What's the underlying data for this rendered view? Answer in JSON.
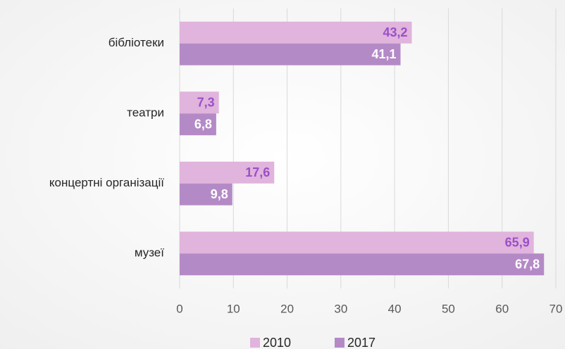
{
  "chart_data": {
    "type": "barh",
    "categories": [
      "бібліотеки",
      "театри",
      "концертні організації",
      "музеї"
    ],
    "series": [
      {
        "name": "2010",
        "color": "#e0b4dc",
        "label_color": "#9b4fc8",
        "values": [
          43.2,
          7.3,
          17.6,
          65.9
        ],
        "value_labels": [
          "43,2",
          "7,3",
          "17,6",
          "65,9"
        ]
      },
      {
        "name": "2017",
        "color": "#b48ac6",
        "label_color": "#ffffff",
        "values": [
          41.1,
          6.8,
          9.8,
          67.8
        ],
        "value_labels": [
          "41,1",
          "6,8",
          "9,8",
          "67,8"
        ]
      }
    ],
    "xlim": [
      0,
      70
    ],
    "xticks": [
      0,
      10,
      20,
      30,
      40,
      50,
      60,
      70
    ],
    "grid": true,
    "legend": "bottom"
  }
}
